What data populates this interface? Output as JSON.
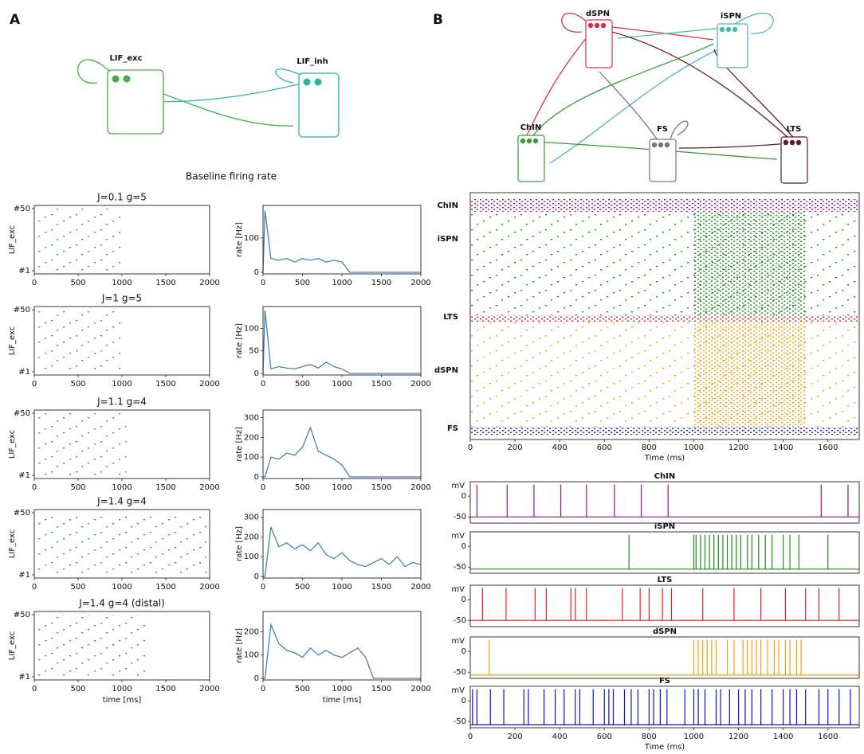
{
  "panel_a": {
    "label": "A",
    "diagram": {
      "nodes": [
        {
          "label": "LIF_exc",
          "color": "#3cb043"
        },
        {
          "label": "LIF_inh",
          "color": "#2ab3a6"
        }
      ]
    },
    "section_title": "Baseline firing rate",
    "xlabel": "time [ms]",
    "raster_ylabel": "LIF_exc",
    "rate_ylabel": "rate [Hz]",
    "color": "#4a7fb5",
    "xlim": [
      0,
      2000
    ],
    "xticks": [
      0,
      500,
      1000,
      1500,
      2000
    ],
    "raster_ylim": [
      1,
      50
    ],
    "raster_yticks": [
      {
        "value": 50,
        "label": "#50"
      },
      {
        "value": 1,
        "label": "#1"
      }
    ],
    "rate_x": [
      0,
      25,
      100,
      200,
      300,
      400,
      500,
      600,
      700,
      800,
      900,
      1000,
      1100,
      1200,
      1300,
      1400,
      1500,
      1600,
      1700,
      1800,
      1900,
      2000
    ],
    "rows": [
      {
        "title": "J=0.1 g=5",
        "active_until": 1000,
        "rate_ylim": [
          0,
          190
        ],
        "rate_yticks": [
          0,
          100
        ],
        "rate_values": [
          0,
          180,
          40,
          35,
          40,
          30,
          40,
          35,
          40,
          30,
          35,
          30,
          0,
          0,
          0,
          0,
          0,
          0,
          0,
          0,
          0,
          0
        ]
      },
      {
        "title": "J=1 g=5",
        "active_until": 1000,
        "rate_ylim": [
          0,
          145
        ],
        "rate_yticks": [
          0,
          50,
          100
        ],
        "rate_values": [
          0,
          140,
          10,
          15,
          12,
          10,
          15,
          20,
          12,
          25,
          15,
          10,
          0,
          0,
          0,
          0,
          0,
          0,
          0,
          0,
          0,
          0
        ]
      },
      {
        "title": "J=1.1 g=4",
        "active_until": 1050,
        "rate_ylim": [
          0,
          330
        ],
        "rate_yticks": [
          0,
          100,
          200,
          300
        ],
        "rate_values": [
          0,
          0,
          100,
          90,
          120,
          110,
          150,
          250,
          130,
          110,
          90,
          60,
          0,
          0,
          0,
          0,
          0,
          0,
          0,
          0,
          0,
          0
        ]
      },
      {
        "title": "J=1.4 g=4",
        "active_until": 2000,
        "rate_ylim": [
          0,
          330
        ],
        "rate_yticks": [
          0,
          100,
          200,
          300
        ],
        "rate_values": [
          0,
          0,
          250,
          150,
          170,
          140,
          160,
          130,
          170,
          110,
          90,
          120,
          80,
          60,
          50,
          70,
          90,
          60,
          100,
          50,
          70,
          60
        ]
      },
      {
        "title": "J=1.4 g=4 (distal)",
        "active_until": 1320,
        "rate_ylim": [
          0,
          280
        ],
        "rate_yticks": [
          0,
          100,
          200
        ],
        "rate_values": [
          0,
          0,
          230,
          150,
          120,
          110,
          90,
          130,
          100,
          120,
          100,
          90,
          110,
          130,
          90,
          0,
          0,
          0,
          0,
          0,
          0,
          0
        ]
      }
    ]
  },
  "panel_b": {
    "label": "B",
    "diagram": {
      "nodes": [
        {
          "label": "dSPN",
          "color": "#d6304f"
        },
        {
          "label": "iSPN",
          "color": "#49b8b0"
        },
        {
          "label": "ChIN",
          "color": "#3a9a3a"
        },
        {
          "label": "FS",
          "color": "#777777"
        },
        {
          "label": "LTS",
          "color": "#5a1f1f"
        }
      ]
    },
    "raster": {
      "xlim": [
        0,
        1740
      ],
      "xticks": [
        0,
        200,
        400,
        600,
        800,
        1000,
        1200,
        1400,
        1600
      ],
      "xlabel": "Time (ms)",
      "burst": [
        1000,
        1500
      ],
      "groups": [
        {
          "name": "ChIN",
          "color": "#8b1a8b",
          "burst": false
        },
        {
          "name": "iSPN",
          "color": "#1e8a1e",
          "burst": true
        },
        {
          "name": "LTS",
          "color": "#e02020",
          "burst": false
        },
        {
          "name": "dSPN",
          "color": "#f0a010",
          "burst": true
        },
        {
          "name": "FS",
          "color": "#1010d0",
          "burst": false
        }
      ]
    },
    "traces": {
      "xlim": [
        0,
        1740
      ],
      "xticks": [
        0,
        200,
        400,
        600,
        800,
        1000,
        1200,
        1400,
        1600
      ],
      "xlabel": "Time (ms)",
      "ylabel": "mV",
      "ylim": [
        -65,
        35
      ],
      "yticks": [
        0,
        -50
      ],
      "items": [
        {
          "title": "ChIN",
          "color": "#8b1a8b",
          "rest": -50,
          "peak": 28,
          "spikes": [
            30,
            165,
            285,
            405,
            520,
            645,
            765,
            885,
            1570,
            1690
          ]
        },
        {
          "title": "iSPN",
          "color": "#1e8a1e",
          "rest": -55,
          "peak": 28,
          "spikes": [
            710,
            1000,
            1010,
            1030,
            1050,
            1070,
            1090,
            1110,
            1130,
            1150,
            1170,
            1190,
            1210,
            1240,
            1260,
            1290,
            1320,
            1350,
            1400,
            1430,
            1470,
            1600
          ]
        },
        {
          "title": "LTS",
          "color": "#e02020",
          "rest": -50,
          "peak": 28,
          "spikes": [
            55,
            160,
            290,
            340,
            450,
            470,
            520,
            680,
            760,
            800,
            860,
            900,
            1040,
            1180,
            1300,
            1410,
            1500,
            1560,
            1650
          ]
        },
        {
          "title": "dSPN",
          "color": "#f0a010",
          "rest": -57,
          "peak": 28,
          "spikes": [
            85,
            1000,
            1020,
            1040,
            1060,
            1080,
            1100,
            1150,
            1180,
            1220,
            1240,
            1260,
            1280,
            1300,
            1330,
            1360,
            1380,
            1410,
            1430,
            1460,
            1480
          ]
        },
        {
          "title": "FS",
          "color": "#1010d0",
          "rest": -58,
          "peak": 28,
          "spikes": [
            10,
            30,
            90,
            150,
            240,
            260,
            330,
            380,
            420,
            470,
            490,
            550,
            600,
            620,
            640,
            690,
            720,
            750,
            800,
            820,
            850,
            880,
            960,
            1000,
            1020,
            1050,
            1100,
            1120,
            1160,
            1200,
            1230,
            1260,
            1300,
            1350,
            1400,
            1430,
            1460,
            1500,
            1560,
            1600,
            1650,
            1700
          ]
        }
      ]
    }
  }
}
